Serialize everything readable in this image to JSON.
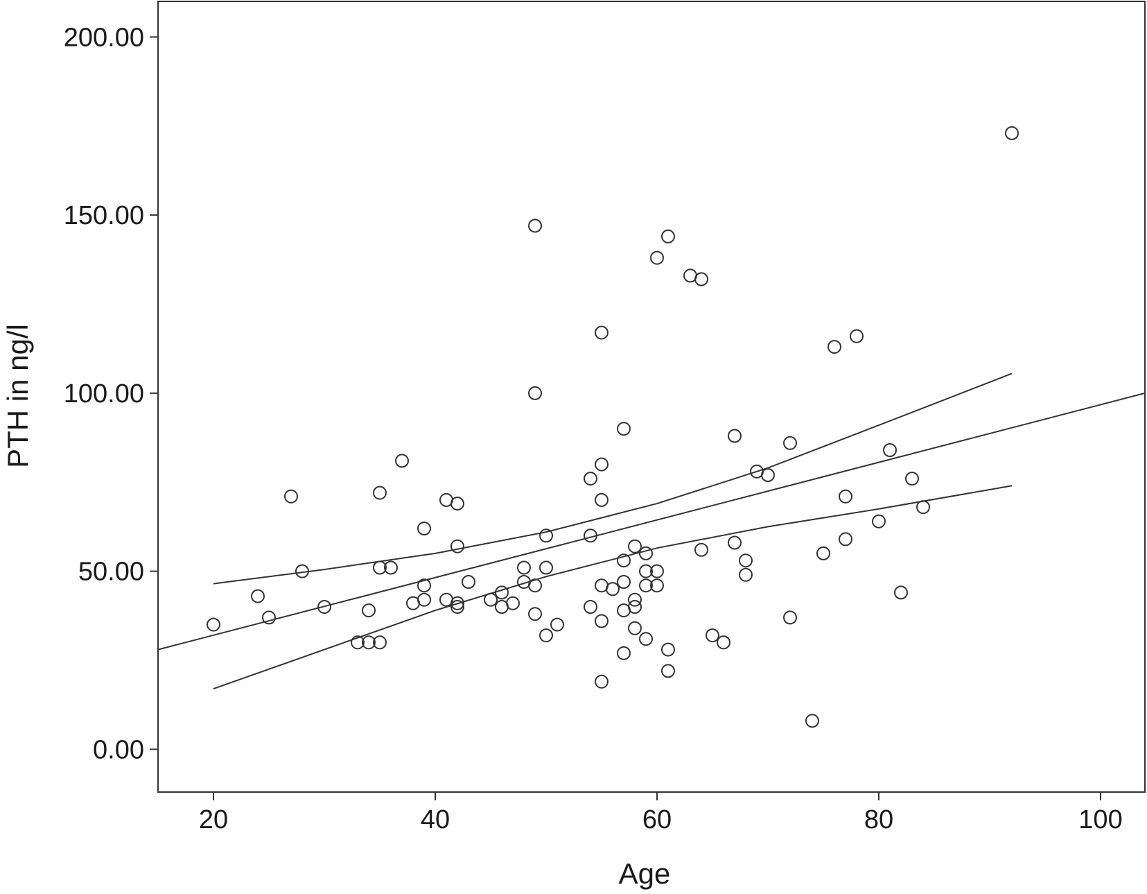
{
  "chart_data": {
    "type": "scatter",
    "title": "",
    "xlabel": "Age",
    "ylabel": "PTH in ng/l",
    "xlim": [
      15,
      104
    ],
    "ylim": [
      -12,
      210
    ],
    "x_ticks": [
      20,
      40,
      60,
      80,
      100
    ],
    "x_tick_labels": [
      "20",
      "40",
      "60",
      "80",
      "100"
    ],
    "y_ticks": [
      0,
      50,
      100,
      150,
      200
    ],
    "y_tick_labels": [
      "0.00",
      "50.00",
      "100.00",
      "150.00",
      "200.00"
    ],
    "grid": false,
    "legend": "none",
    "colors": {
      "marker": "#333333",
      "line": "#333333",
      "background": "#ffffff"
    },
    "points": [
      {
        "x": 20,
        "y": 35
      },
      {
        "x": 24,
        "y": 43
      },
      {
        "x": 25,
        "y": 37
      },
      {
        "x": 27,
        "y": 71
      },
      {
        "x": 28,
        "y": 50
      },
      {
        "x": 30,
        "y": 40
      },
      {
        "x": 33,
        "y": 30
      },
      {
        "x": 34,
        "y": 30
      },
      {
        "x": 34,
        "y": 39
      },
      {
        "x": 35,
        "y": 30
      },
      {
        "x": 35,
        "y": 51
      },
      {
        "x": 35,
        "y": 72
      },
      {
        "x": 36,
        "y": 51
      },
      {
        "x": 37,
        "y": 81
      },
      {
        "x": 38,
        "y": 41
      },
      {
        "x": 39,
        "y": 42
      },
      {
        "x": 39,
        "y": 46
      },
      {
        "x": 39,
        "y": 62
      },
      {
        "x": 41,
        "y": 42
      },
      {
        "x": 41,
        "y": 70
      },
      {
        "x": 42,
        "y": 40
      },
      {
        "x": 42,
        "y": 41
      },
      {
        "x": 42,
        "y": 57
      },
      {
        "x": 42,
        "y": 69
      },
      {
        "x": 43,
        "y": 47
      },
      {
        "x": 45,
        "y": 42
      },
      {
        "x": 46,
        "y": 40
      },
      {
        "x": 46,
        "y": 44
      },
      {
        "x": 47,
        "y": 41
      },
      {
        "x": 48,
        "y": 47
      },
      {
        "x": 48,
        "y": 51
      },
      {
        "x": 49,
        "y": 38
      },
      {
        "x": 49,
        "y": 46
      },
      {
        "x": 49,
        "y": 100
      },
      {
        "x": 49,
        "y": 147
      },
      {
        "x": 50,
        "y": 32
      },
      {
        "x": 50,
        "y": 51
      },
      {
        "x": 50,
        "y": 60
      },
      {
        "x": 51,
        "y": 35
      },
      {
        "x": 54,
        "y": 40
      },
      {
        "x": 54,
        "y": 60
      },
      {
        "x": 54,
        "y": 76
      },
      {
        "x": 55,
        "y": 19
      },
      {
        "x": 55,
        "y": 36
      },
      {
        "x": 55,
        "y": 46
      },
      {
        "x": 55,
        "y": 70
      },
      {
        "x": 55,
        "y": 80
      },
      {
        "x": 55,
        "y": 117
      },
      {
        "x": 56,
        "y": 45
      },
      {
        "x": 57,
        "y": 27
      },
      {
        "x": 57,
        "y": 39
      },
      {
        "x": 57,
        "y": 47
      },
      {
        "x": 57,
        "y": 53
      },
      {
        "x": 57,
        "y": 90
      },
      {
        "x": 58,
        "y": 34
      },
      {
        "x": 58,
        "y": 40
      },
      {
        "x": 58,
        "y": 42
      },
      {
        "x": 58,
        "y": 57
      },
      {
        "x": 59,
        "y": 31
      },
      {
        "x": 59,
        "y": 46
      },
      {
        "x": 59,
        "y": 50
      },
      {
        "x": 59,
        "y": 55
      },
      {
        "x": 60,
        "y": 46
      },
      {
        "x": 60,
        "y": 50
      },
      {
        "x": 60,
        "y": 138
      },
      {
        "x": 61,
        "y": 22
      },
      {
        "x": 61,
        "y": 28
      },
      {
        "x": 61,
        "y": 144
      },
      {
        "x": 63,
        "y": 133
      },
      {
        "x": 64,
        "y": 56
      },
      {
        "x": 64,
        "y": 132
      },
      {
        "x": 65,
        "y": 32
      },
      {
        "x": 66,
        "y": 30
      },
      {
        "x": 67,
        "y": 58
      },
      {
        "x": 67,
        "y": 88
      },
      {
        "x": 68,
        "y": 49
      },
      {
        "x": 68,
        "y": 53
      },
      {
        "x": 69,
        "y": 78
      },
      {
        "x": 70,
        "y": 77
      },
      {
        "x": 72,
        "y": 37
      },
      {
        "x": 72,
        "y": 86
      },
      {
        "x": 74,
        "y": 8
      },
      {
        "x": 75,
        "y": 55
      },
      {
        "x": 76,
        "y": 113
      },
      {
        "x": 77,
        "y": 59
      },
      {
        "x": 77,
        "y": 71
      },
      {
        "x": 78,
        "y": 116
      },
      {
        "x": 80,
        "y": 64
      },
      {
        "x": 81,
        "y": 84
      },
      {
        "x": 82,
        "y": 44
      },
      {
        "x": 83,
        "y": 76
      },
      {
        "x": 84,
        "y": 68
      },
      {
        "x": 92,
        "y": 173
      }
    ],
    "lines": [
      {
        "role": "fit",
        "x": [
          15,
          104
        ],
        "y": [
          28,
          100
        ]
      },
      {
        "role": "upper-ci",
        "x": [
          20,
          30,
          40,
          50,
          60,
          70,
          80,
          92
        ],
        "y": [
          46.5,
          50.5,
          55,
          61,
          69,
          79,
          91,
          105.5
        ]
      },
      {
        "role": "lower-ci",
        "x": [
          20,
          30,
          40,
          50,
          60,
          70,
          80,
          92
        ],
        "y": [
          17,
          28,
          39,
          48.5,
          56.5,
          62.5,
          67.5,
          74
        ]
      }
    ]
  }
}
